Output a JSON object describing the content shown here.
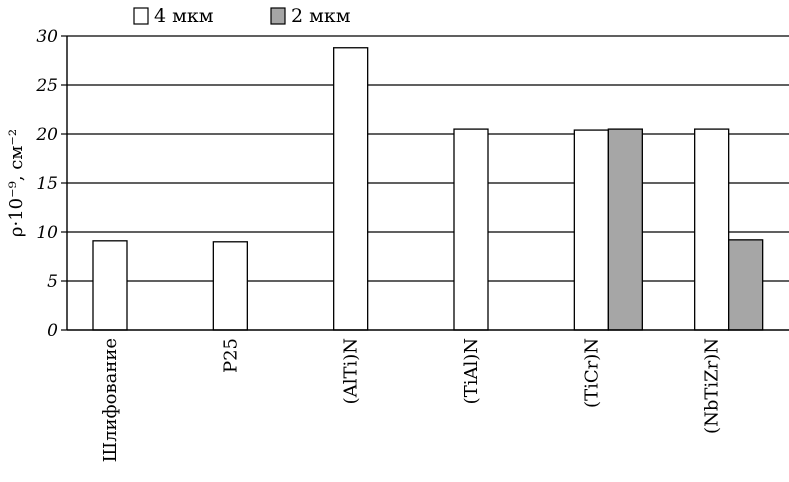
{
  "chart_data": {
    "type": "bar",
    "ylabel": "ρ·10⁻⁹, см⁻²",
    "ylim": [
      0,
      30
    ],
    "yticks": [
      0,
      5,
      10,
      15,
      20,
      25,
      30
    ],
    "grid": true,
    "legend_position": "top",
    "categories": [
      "Шлифование",
      "Р25",
      "(AlTi)N",
      "(TiAl)N",
      "(TiCr)N",
      "(NbTiZr)N"
    ],
    "series": [
      {
        "name": "4 мкм",
        "color": "#ffffff",
        "values": [
          9.1,
          9.0,
          28.8,
          20.5,
          20.4,
          20.5
        ]
      },
      {
        "name": "2 мкм",
        "color": "#a6a6a6",
        "values": [
          null,
          null,
          null,
          null,
          20.5,
          9.2
        ]
      }
    ]
  }
}
